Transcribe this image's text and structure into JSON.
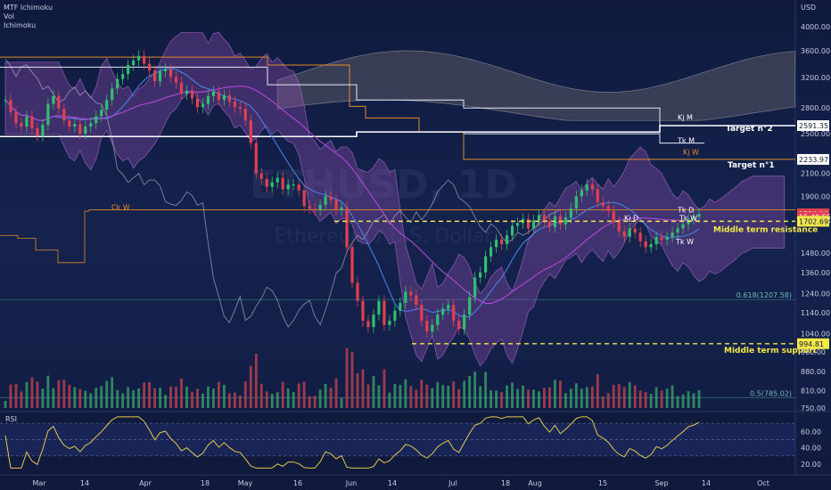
{
  "header": {
    "indicators": [
      "MTF Ichimoku",
      "Vol",
      "Ichimoku"
    ],
    "currency": "USD",
    "watermark_symbol": "ETHUSD, 1D",
    "watermark_name": "Ethereum / U.S. Dollar"
  },
  "rsi_pane": {
    "label": "RSI",
    "ticks": [
      "60.00",
      "40.00",
      "20.00"
    ],
    "ticks_values": [
      60,
      40,
      20
    ],
    "levels": [
      70,
      50,
      30
    ]
  },
  "chart_data": {
    "type": "candlestick",
    "symbol": "ETHUSD",
    "interval": "1D",
    "y_scale": "log",
    "y_ticks": [
      4000,
      3600,
      3200,
      2800,
      2500,
      2100,
      1900,
      1700,
      1480,
      1360,
      1240,
      1140,
      1040,
      960,
      880,
      810,
      750
    ],
    "y_tick_labels": [
      "4000.00",
      "3600.00",
      "3200.00",
      "2800.00",
      "2500.00",
      "2100.00",
      "1900.00",
      "1700.00",
      "1480.00",
      "1360.00",
      "1240.00",
      "1140.00",
      "1040.00",
      "960.00",
      "880.00",
      "810.00",
      "750.00"
    ],
    "x_ticks": [
      "Mar",
      "14",
      "Apr",
      "18",
      "May",
      "16",
      "Jun",
      "14",
      "Jul",
      "18",
      "Aug",
      "15",
      "Sep",
      "14",
      "Oct"
    ],
    "price_tags": [
      {
        "label": "2591.35",
        "value": 2591.35,
        "style": "white"
      },
      {
        "label": "2233.97",
        "value": 2233.97,
        "style": "white"
      },
      {
        "label": "1759.33",
        "value": 1759.33,
        "style": "red"
      },
      {
        "label": "15:40:55",
        "value": 1735,
        "style": "red"
      },
      {
        "label": "1702.69",
        "value": 1702.69,
        "style": "yellow"
      },
      {
        "label": "994.81",
        "value": 994.81,
        "style": "yellow"
      }
    ],
    "annotations": [
      {
        "text": "Target n°2",
        "value": 2591.35
      },
      {
        "text": "Target n°1",
        "value": 2233.97
      },
      {
        "text": "Middle term resistance",
        "value": 1702.69
      },
      {
        "text": "Middle term support",
        "value": 994.81
      }
    ],
    "line_labels": [
      {
        "text": "Kj M",
        "value": 2660
      },
      {
        "text": "Tk M",
        "value": 2400
      },
      {
        "text": "Kj W",
        "value": 2280
      },
      {
        "text": "Ck W",
        "value": 1790
      },
      {
        "text": "Tk W",
        "value": 1540
      },
      {
        "text": "Tk W",
        "value": 1710
      },
      {
        "text": "Kj D",
        "value": 1710
      },
      {
        "text": "Tk D",
        "value": 1770
      }
    ],
    "fib_levels": [
      {
        "label": "0.618(1207.58)",
        "value": 1207.58
      },
      {
        "label": "0.5(785.02)",
        "value": 785.02
      }
    ],
    "series_close": [
      2900,
      2750,
      2620,
      2580,
      2700,
      2560,
      2480,
      2600,
      2850,
      2950,
      2790,
      2650,
      2580,
      2610,
      2500,
      2580,
      2620,
      2700,
      2780,
      2900,
      3050,
      3180,
      3250,
      3380,
      3450,
      3520,
      3400,
      3300,
      3150,
      3290,
      3320,
      3210,
      3130,
      2980,
      3020,
      2920,
      2810,
      2850,
      2950,
      3010,
      2900,
      2960,
      2880,
      2810,
      2790,
      2650,
      2400,
      2100,
      2050,
      1980,
      2020,
      2060,
      1960,
      2000,
      2000,
      1950,
      1820,
      1800,
      1790,
      1830,
      1900,
      1870,
      1790,
      1810,
      1520,
      1300,
      1200,
      1100,
      1070,
      1130,
      1200,
      1080,
      1100,
      1150,
      1190,
      1250,
      1230,
      1180,
      1100,
      1050,
      1080,
      1130,
      1160,
      1180,
      1100,
      1060,
      1130,
      1220,
      1330,
      1360,
      1460,
      1520,
      1570,
      1540,
      1600,
      1670,
      1690,
      1720,
      1650,
      1710,
      1750,
      1700,
      1660,
      1740,
      1680,
      1730,
      1800,
      1900,
      1950,
      2000,
      1960,
      1850,
      1820,
      1780,
      1700,
      1630,
      1590,
      1650,
      1620,
      1560,
      1520,
      1540,
      1590,
      1570,
      1590,
      1620,
      1650,
      1680,
      1720,
      1735,
      1759.33
    ]
  }
}
